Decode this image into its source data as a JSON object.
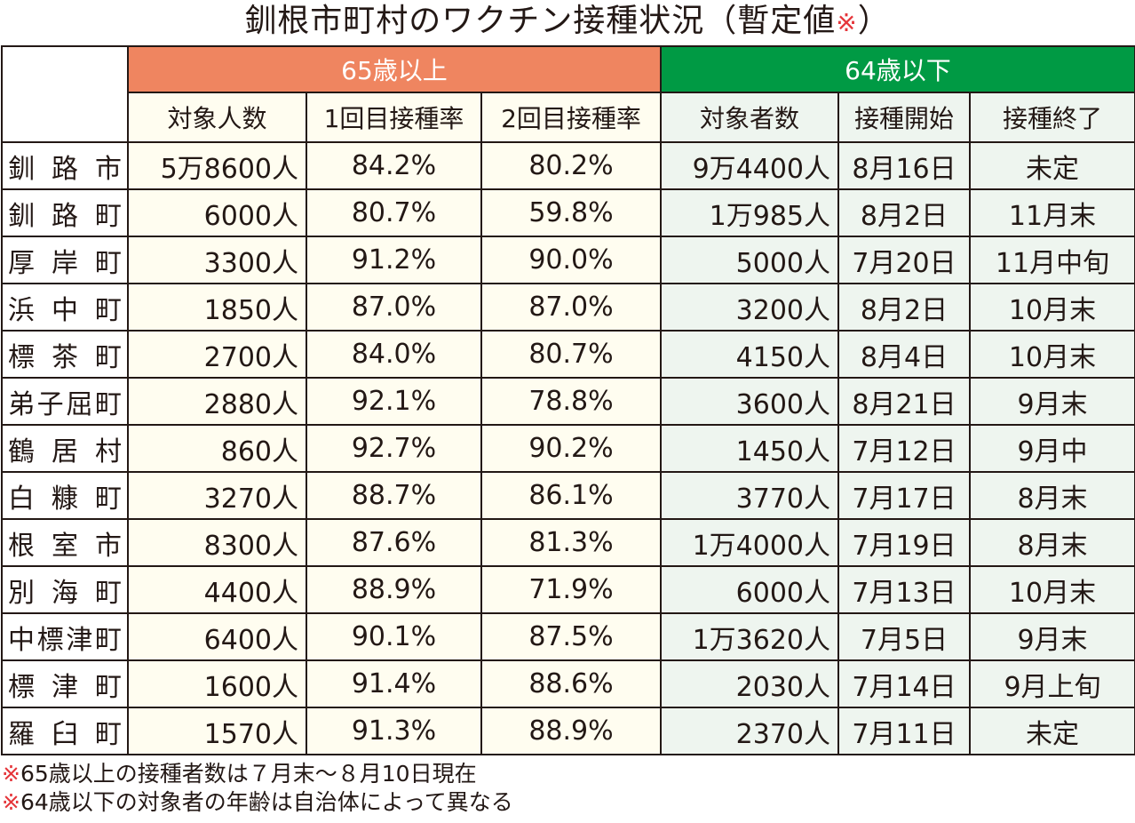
{
  "title": {
    "text": "釧根市町村のワクチン接種状況（暫定値",
    "mark": "※",
    "close": "）"
  },
  "colors": {
    "old_header": "#ef8560",
    "young_header": "#009a44",
    "old_cell_bg": "#fffdf0",
    "young_cell_bg": "#eef5ef",
    "note_mark": "#e5353a",
    "border": "#231815"
  },
  "groups": {
    "old": "65歳以上",
    "young": "64歳以下"
  },
  "columns": {
    "old": [
      "対象人数",
      "1回目接種率",
      "2回目接種率"
    ],
    "young": [
      "対象者数",
      "接種開始",
      "接種終了"
    ]
  },
  "rows": [
    {
      "name": "釧路市",
      "old_target": "5万8600人",
      "first_rate": "84.2%",
      "second_rate": "80.2%",
      "young_target": "9万4400人",
      "start": "8月16日",
      "end": "未定"
    },
    {
      "name": "釧路町",
      "old_target": "6000人",
      "first_rate": "80.7%",
      "second_rate": "59.8%",
      "young_target": "1万985人",
      "start": "8月2日",
      "end": "11月末"
    },
    {
      "name": "厚岸町",
      "old_target": "3300人",
      "first_rate": "91.2%",
      "second_rate": "90.0%",
      "young_target": "5000人",
      "start": "7月20日",
      "end": "11月中旬"
    },
    {
      "name": "浜中町",
      "old_target": "1850人",
      "first_rate": "87.0%",
      "second_rate": "87.0%",
      "young_target": "3200人",
      "start": "8月2日",
      "end": "10月末"
    },
    {
      "name": "標茶町",
      "old_target": "2700人",
      "first_rate": "84.0%",
      "second_rate": "80.7%",
      "young_target": "4150人",
      "start": "8月4日",
      "end": "10月末"
    },
    {
      "name": "弟子屈町",
      "old_target": "2880人",
      "first_rate": "92.1%",
      "second_rate": "78.8%",
      "young_target": "3600人",
      "start": "8月21日",
      "end": "9月末"
    },
    {
      "name": "鶴居村",
      "old_target": "860人",
      "first_rate": "92.7%",
      "second_rate": "90.2%",
      "young_target": "1450人",
      "start": "7月12日",
      "end": "9月中"
    },
    {
      "name": "白糠町",
      "old_target": "3270人",
      "first_rate": "88.7%",
      "second_rate": "86.1%",
      "young_target": "3770人",
      "start": "7月17日",
      "end": "8月末"
    },
    {
      "name": "根室市",
      "old_target": "8300人",
      "first_rate": "87.6%",
      "second_rate": "81.3%",
      "young_target": "1万4000人",
      "start": "7月19日",
      "end": "8月末"
    },
    {
      "name": "別海町",
      "old_target": "4400人",
      "first_rate": "88.9%",
      "second_rate": "71.9%",
      "young_target": "6000人",
      "start": "7月13日",
      "end": "10月末"
    },
    {
      "name": "中標津町",
      "old_target": "6400人",
      "first_rate": "90.1%",
      "second_rate": "87.5%",
      "young_target": "1万3620人",
      "start": "7月5日",
      "end": "9月末"
    },
    {
      "name": "標津町",
      "old_target": "1600人",
      "first_rate": "91.4%",
      "second_rate": "88.6%",
      "young_target": "2030人",
      "start": "7月14日",
      "end": "9月上旬"
    },
    {
      "name": "羅臼町",
      "old_target": "1570人",
      "first_rate": "91.3%",
      "second_rate": "88.9%",
      "young_target": "2370人",
      "start": "7月11日",
      "end": "未定"
    }
  ],
  "notes": [
    {
      "mark": "※",
      "text": "65歳以上の接種者数は７月末～８月10日現在"
    },
    {
      "mark": "※",
      "text": "64歳以下の対象者の年齢は自治体によって異なる"
    }
  ]
}
